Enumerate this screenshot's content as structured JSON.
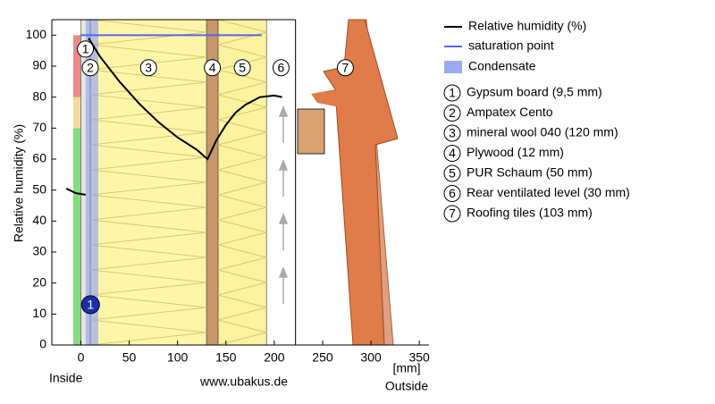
{
  "chart_data": {
    "type": "line",
    "y_label": "Relative humidity (%)",
    "x_unit": "[mm]",
    "inside_label": "Inside",
    "outside_label": "Outside",
    "source": "www.ubakus.de",
    "xlim": [
      -30,
      360
    ],
    "ylim": [
      0,
      105
    ],
    "xticks": [
      0,
      50,
      100,
      150,
      200,
      250,
      300,
      350
    ],
    "yticks": [
      0,
      10,
      20,
      30,
      40,
      50,
      60,
      70,
      80,
      90,
      100
    ],
    "series": [
      {
        "name": "Relative humidity (%)",
        "color": "#000000",
        "x": [
          -15,
          -5,
          5,
          null,
          8,
          20,
          40,
          60,
          80,
          100,
          120,
          131,
          140,
          150,
          160,
          170,
          185,
          200,
          208
        ],
        "values": [
          50.5,
          49,
          48.5,
          null,
          99,
          93,
          85,
          78,
          72,
          67,
          63,
          60,
          66,
          71,
          75,
          77.5,
          80,
          80.5,
          80
        ]
      },
      {
        "name": "saturation point",
        "color": "#5566ee",
        "x": [
          0,
          187
        ],
        "values": [
          100,
          100
        ]
      }
    ],
    "condensate": {
      "name": "Condensate",
      "color": "#99aaf0",
      "from": 5,
      "to": 18
    },
    "condensate_marker": {
      "label": "1",
      "x": 10,
      "y": 13
    },
    "zones": [
      {
        "from": 0,
        "to": 70,
        "color": "#80dd80"
      },
      {
        "from": 70,
        "to": 80,
        "color": "#f5d9a0"
      },
      {
        "from": 80,
        "to": 100,
        "color": "#ee8888"
      }
    ],
    "layers": [
      {
        "label": "1",
        "name": "Gypsum board (9,5 mm)",
        "from": 0,
        "to": 9.5,
        "color": "#e6e6de"
      },
      {
        "label": "2",
        "name": "Ampatex Cento",
        "from": 9.5,
        "to": 10,
        "color": "#c9d2f2"
      },
      {
        "label": "3",
        "name": "mineral wool 040 (120 mm)",
        "from": 10,
        "to": 130,
        "color": "#fdf6a8"
      },
      {
        "label": "4",
        "name": "Plywood (12 mm)",
        "from": 130,
        "to": 142,
        "color": "#c8966a"
      },
      {
        "label": "5",
        "name": "PUR Schaum (50 mm)",
        "from": 142,
        "to": 192,
        "color": "#fbf3a0"
      },
      {
        "label": "6",
        "name": "Rear ventilated level (30 mm)",
        "from": 192,
        "to": 222,
        "color": "#ffffff"
      },
      {
        "label": "7",
        "name": "Roofing tiles (103 mm)",
        "from": 222,
        "to": 325,
        "color": "none"
      }
    ]
  }
}
